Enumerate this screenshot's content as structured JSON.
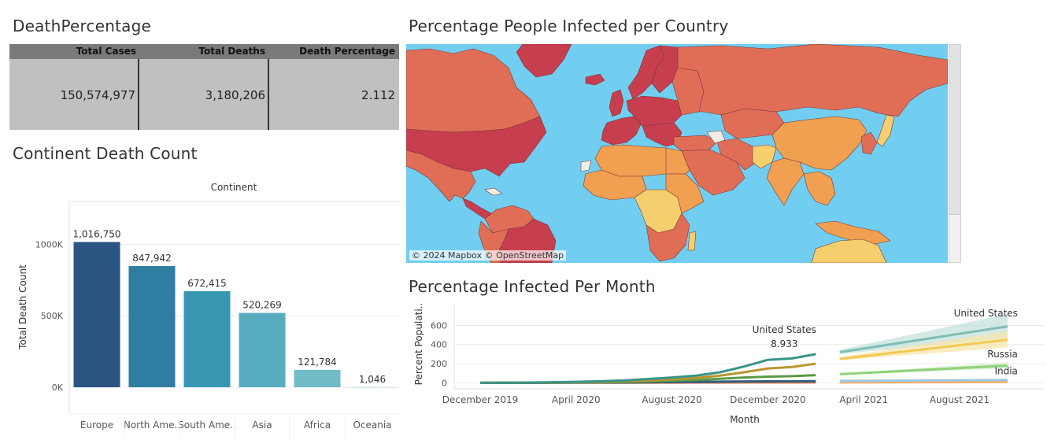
{
  "titles": {
    "death_percentage": "DeathPercentage",
    "continent": "Continent Death Count",
    "map": "Percentage People Infected per Country",
    "month": "Percentage Infected Per Month"
  },
  "kpi": {
    "headers": [
      "Total Cases",
      "Total Deaths",
      "Death Percentage"
    ],
    "values": [
      "150,574,977",
      "3,180,206",
      "2.112"
    ]
  },
  "map": {
    "attribution": "© 2024 Mapbox © OpenStreetMap",
    "colors": {
      "ocean": "#72cef0",
      "high": "#c73e4f",
      "mid": "#e06e57",
      "low": "#f0a050",
      "lowest": "#f5cf6e",
      "na": "#f2eee4"
    }
  },
  "chart_data": [
    {
      "type": "bar",
      "title": "Continent Death Count",
      "column_header": "Continent",
      "categories": [
        "Europe",
        "North Ame..",
        "South Ame..",
        "Asia",
        "Africa",
        "Oceania"
      ],
      "values": [
        1016750,
        847942,
        672415,
        520269,
        121784,
        1046
      ],
      "data_labels": [
        "1,016,750",
        "847,942",
        "672,415",
        "520,269",
        "121,784",
        "1,046"
      ],
      "colors": [
        "#2a5582",
        "#2f7ea2",
        "#3898b4",
        "#58acc0",
        "#72bcc8",
        "#cfe3e6"
      ],
      "ylabel": "Total Death Count",
      "ylim": [
        0,
        1300000
      ],
      "yticks": [
        0,
        500000,
        1000000
      ],
      "ytick_labels": [
        "0K",
        "500K",
        "1000K"
      ],
      "grid": true
    },
    {
      "type": "line",
      "title": "Percentage Infected Per Month",
      "xlabel": "Month",
      "ylabel": "Percent Populati..",
      "ylim": [
        -30,
        760
      ],
      "yticks": [
        0,
        200,
        400,
        600
      ],
      "x_ticks": [
        "December 2019",
        "April 2020",
        "August 2020",
        "December 2020",
        "April 2021",
        "August 2021"
      ],
      "x_tick_months": [
        0,
        4,
        8,
        12,
        16,
        20
      ],
      "grid": true,
      "series": [
        {
          "color": "#3a9389",
          "x": [
            0,
            1,
            2,
            3,
            4,
            5,
            6,
            7,
            8,
            9,
            10,
            11,
            12,
            13,
            14
          ],
          "values": [
            0,
            1,
            3,
            6,
            10,
            16,
            25,
            40,
            55,
            75,
            110,
            170,
            240,
            255,
            300
          ]
        },
        {
          "color": "#b8962e",
          "x": [
            0,
            1,
            2,
            3,
            4,
            5,
            6,
            7,
            8,
            9,
            10,
            11,
            12,
            13,
            14
          ],
          "values": [
            0,
            1,
            2,
            4,
            7,
            11,
            16,
            25,
            36,
            50,
            75,
            110,
            150,
            165,
            200
          ]
        },
        {
          "color": "#5a9a45",
          "x": [
            0,
            1,
            2,
            3,
            4,
            5,
            6,
            7,
            8,
            9,
            10,
            11,
            12,
            13,
            14
          ],
          "values": [
            0,
            0,
            1,
            2,
            4,
            6,
            10,
            15,
            22,
            30,
            42,
            55,
            65,
            70,
            80
          ]
        },
        {
          "color": "#2f5f7f",
          "x": [
            0,
            1,
            2,
            3,
            4,
            5,
            6,
            7,
            8,
            9,
            10,
            11,
            12,
            13,
            14
          ],
          "values": [
            0,
            0,
            0,
            1,
            2,
            3,
            4,
            6,
            8,
            10,
            12,
            14,
            15,
            16,
            17
          ]
        },
        {
          "color": "#d9734f",
          "x": [
            0,
            1,
            2,
            3,
            4,
            5,
            6,
            7,
            8,
            9,
            10,
            11,
            12,
            13,
            14
          ],
          "values": [
            0,
            0,
            0,
            0,
            1,
            1,
            1,
            2,
            2,
            3,
            3,
            4,
            4,
            4,
            4
          ]
        }
      ],
      "forecast_series": [
        {
          "color": "#7fbdb5",
          "band": "#bfe0da",
          "x": [
            15,
            22
          ],
          "values": [
            320,
            590
          ],
          "lower": [
            300,
            470
          ],
          "upper": [
            345,
            720
          ],
          "label": "United States"
        },
        {
          "color": "#f2c955",
          "band": "#f7e4a6",
          "x": [
            15,
            22
          ],
          "values": [
            250,
            450
          ],
          "lower": [
            235,
            370
          ],
          "upper": [
            270,
            540
          ]
        },
        {
          "color": "#8ed27a",
          "band": "#d0ecc6",
          "x": [
            15,
            22
          ],
          "values": [
            90,
            180
          ],
          "lower": [
            82,
            150
          ],
          "upper": [
            98,
            215
          ],
          "label": "Russia"
        },
        {
          "color": "#9cc8e4",
          "band": "#d6e8f4",
          "x": [
            15,
            22
          ],
          "values": [
            20,
            30
          ],
          "lower": [
            15,
            20
          ],
          "upper": [
            25,
            42
          ],
          "label": "India"
        },
        {
          "color": "#f4b070",
          "band": "#fae0c4",
          "x": [
            15,
            22
          ],
          "values": [
            4,
            8
          ],
          "lower": [
            2,
            4
          ],
          "upper": [
            6,
            12
          ]
        }
      ],
      "annotations": [
        {
          "x": 14,
          "text": "United States",
          "value": "8.933"
        }
      ]
    }
  ]
}
